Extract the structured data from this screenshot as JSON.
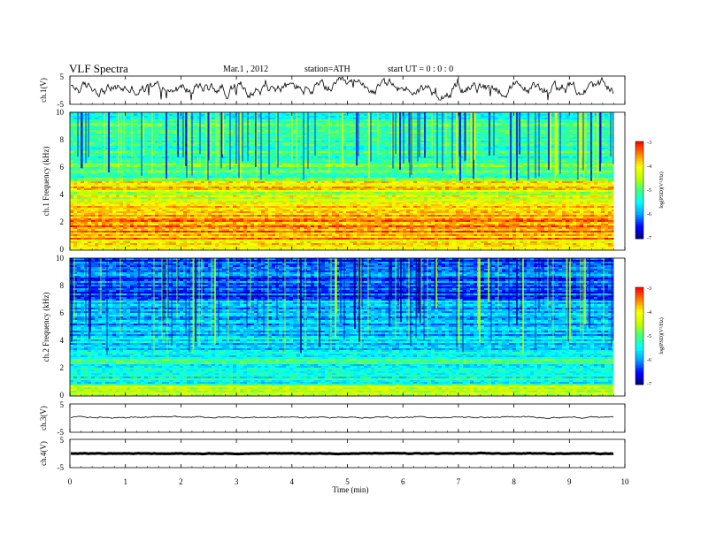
{
  "header": {
    "title": "VLF  Spectra",
    "date": "Mar.1  , 2012",
    "station": "station=ATH",
    "start": "start  UT =   0 : 0  : 0"
  },
  "colors": {
    "spectrum_scale": [
      "#000080",
      "#0000ff",
      "#00a0ff",
      "#00ffff",
      "#40ff80",
      "#c0ff00",
      "#ffff00",
      "#ff8000",
      "#ff0000",
      "#ffffff"
    ],
    "trace": "#000000"
  },
  "chart_data": [
    {
      "type": "line",
      "ylabel": "ch.1(V)",
      "yticks": [
        "5",
        "-5"
      ],
      "ylim": [
        -5,
        5
      ],
      "description_level": "noisy baseline around 0.5 V with dips and spikes",
      "x_range": [
        0,
        9.8
      ]
    },
    {
      "type": "heatmap",
      "ylabel": "ch.1  Frequency (kHz)",
      "yticks": [
        "10",
        "8",
        "6",
        "4",
        "2",
        "0"
      ],
      "ylim": [
        0,
        10
      ],
      "colorbar_label": "log(PSD)(V²/Hz)",
      "colorbar_ticks": [
        "-3",
        "-4",
        "-5",
        "-6",
        "-7"
      ],
      "zlim": [
        -7,
        -3
      ],
      "bands": [
        {
          "f_low": 0.0,
          "f_high": 0.8,
          "level": -4.0
        },
        {
          "f_low": 0.8,
          "f_high": 3.2,
          "level": -3.6
        },
        {
          "f_low": 3.2,
          "f_high": 4.2,
          "level": -4.3
        },
        {
          "f_low": 4.2,
          "f_high": 5.0,
          "level": -4.0
        },
        {
          "f_low": 5.0,
          "f_high": 6.5,
          "level": -5.0
        },
        {
          "f_low": 6.5,
          "f_high": 10.0,
          "level": -5.2
        }
      ]
    },
    {
      "type": "heatmap",
      "ylabel": "ch.2  Frequency (kHz)",
      "yticks": [
        "10",
        "8",
        "6",
        "4",
        "2",
        "0"
      ],
      "ylim": [
        0,
        10
      ],
      "colorbar_label": "log(PSD)(V²/Hz)",
      "colorbar_ticks": [
        "-3",
        "-4",
        "-5",
        "-6",
        "-7"
      ],
      "zlim": [
        -7,
        -3
      ],
      "bands": [
        {
          "f_low": 0.0,
          "f_high": 0.8,
          "level": -4.4
        },
        {
          "f_low": 0.8,
          "f_high": 3.0,
          "level": -5.3
        },
        {
          "f_low": 3.0,
          "f_high": 5.0,
          "level": -5.7
        },
        {
          "f_low": 5.0,
          "f_high": 7.0,
          "level": -5.9
        },
        {
          "f_low": 7.0,
          "f_high": 10.0,
          "level": -6.2
        }
      ]
    },
    {
      "type": "line",
      "ylabel": "ch.3(V)",
      "yticks": [
        "5",
        "-5"
      ],
      "ylim": [
        -5,
        5
      ],
      "level": 0.3,
      "x_range": [
        0,
        9.8
      ]
    },
    {
      "type": "line",
      "ylabel": "ch.4(V)",
      "yticks": [
        "5",
        "-5"
      ],
      "ylim": [
        -5,
        5
      ],
      "level": 0.0,
      "x_range": [
        0,
        9.8
      ]
    }
  ],
  "xaxis": {
    "label": "Time  (min)",
    "ticks": [
      "0",
      "1",
      "2",
      "3",
      "4",
      "5",
      "6",
      "7",
      "8",
      "9",
      "10"
    ],
    "xlim": [
      0,
      10
    ]
  }
}
